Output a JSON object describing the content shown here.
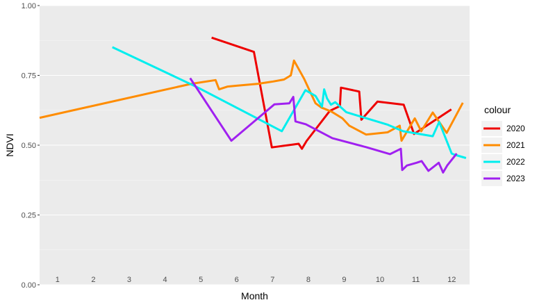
{
  "chart_data": {
    "type": "line",
    "xlabel": "Month",
    "ylabel": "NDVI",
    "xlim": [
      0.5,
      12.5
    ],
    "ylim": [
      0,
      1
    ],
    "y_ticks": [
      0.0,
      0.25,
      0.5,
      0.75,
      1.0
    ],
    "y_tick_labels": [
      "0.00",
      "0.25",
      "0.50",
      "0.75",
      "1.00"
    ],
    "x_ticks": [
      1,
      2,
      3,
      4,
      5,
      6,
      7,
      8,
      9,
      10,
      11,
      12
    ],
    "x_tick_labels": [
      "1",
      "2",
      "3",
      "4",
      "5",
      "6",
      "7",
      "8",
      "9",
      "10",
      "11",
      "12"
    ],
    "grid": true,
    "legend": {
      "title": "colour",
      "placement": "right"
    },
    "series": [
      {
        "name": "2020",
        "color": "#EE0000",
        "x": [
          5.3,
          6.48,
          6.98,
          7.73,
          7.82,
          7.95,
          8.6,
          8.88,
          8.91,
          9.42,
          9.48,
          9.93,
          10.66,
          10.95,
          11.99
        ],
        "y": [
          0.885,
          0.834,
          0.492,
          0.505,
          0.487,
          0.515,
          0.623,
          0.64,
          0.706,
          0.692,
          0.591,
          0.656,
          0.645,
          0.54,
          0.628
        ]
      },
      {
        "name": "2021",
        "color": "#FF8C00",
        "x": [
          0.5,
          4.74,
          5.41,
          5.51,
          5.75,
          6.0,
          6.6,
          7.02,
          7.32,
          7.51,
          7.6,
          7.88,
          8.2,
          8.36,
          8.65,
          8.95,
          9.14,
          9.61,
          10.21,
          10.55,
          10.6,
          10.97,
          11.15,
          11.47,
          11.86,
          12.31
        ],
        "y": [
          0.598,
          0.72,
          0.733,
          0.7,
          0.71,
          0.713,
          0.72,
          0.728,
          0.735,
          0.75,
          0.803,
          0.738,
          0.65,
          0.635,
          0.62,
          0.596,
          0.57,
          0.538,
          0.546,
          0.57,
          0.516,
          0.596,
          0.55,
          0.617,
          0.544,
          0.652
        ]
      },
      {
        "name": "2022",
        "color": "#00EEEE",
        "x": [
          2.53,
          4.89,
          7.26,
          7.92,
          8.2,
          8.38,
          8.44,
          8.52,
          8.63,
          8.75,
          9.06,
          10.2,
          10.64,
          11.47,
          11.65,
          12.0,
          12.13,
          12.4
        ],
        "y": [
          0.851,
          0.708,
          0.55,
          0.697,
          0.676,
          0.638,
          0.7,
          0.668,
          0.645,
          0.654,
          0.618,
          0.574,
          0.55,
          0.532,
          0.583,
          0.47,
          0.464,
          0.454
        ]
      },
      {
        "name": "2023",
        "color": "#A020F0",
        "x": [
          4.7,
          5.85,
          7.05,
          7.47,
          7.58,
          7.64,
          7.93,
          8.67,
          9.61,
          10.28,
          10.58,
          10.62,
          10.75,
          11.02,
          11.16,
          11.35,
          11.64,
          11.76,
          11.88,
          12.14
        ],
        "y": [
          0.74,
          0.516,
          0.646,
          0.65,
          0.673,
          0.585,
          0.575,
          0.525,
          0.493,
          0.468,
          0.487,
          0.411,
          0.427,
          0.437,
          0.443,
          0.408,
          0.437,
          0.402,
          0.428,
          0.47
        ]
      }
    ]
  }
}
